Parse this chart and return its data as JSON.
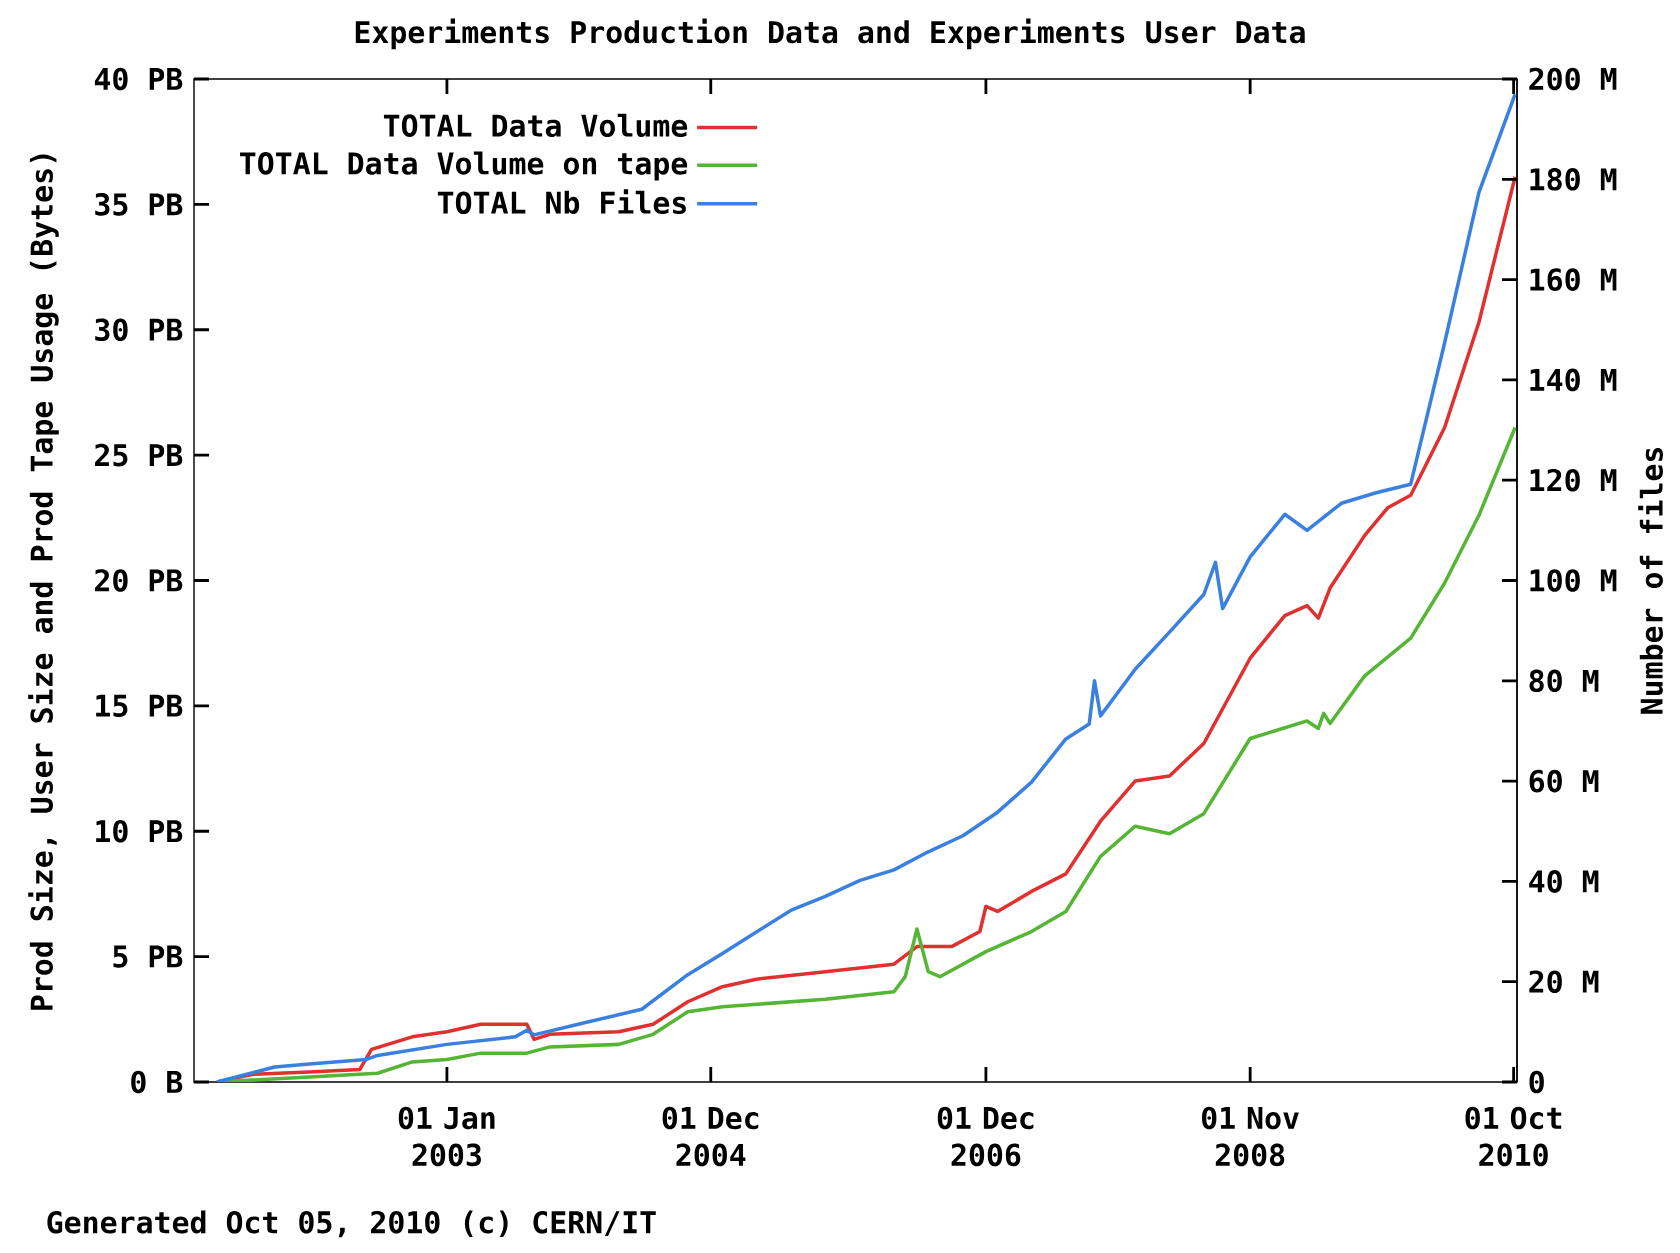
{
  "chart_data": {
    "type": "line",
    "title": "Experiments Production Data and Experiments User Data",
    "ylabel": "Prod Size, User Size and Prod Tape Usage (Bytes)",
    "y2label": "Number of files",
    "annotations": [
      "Generated Oct 05, 2010 (c) CERN/IT"
    ],
    "xlim": [
      "2001-03-01",
      "2010-10-10"
    ],
    "xticks": [
      {
        "value": "2003-01-01",
        "label": "01 Jan 2003"
      },
      {
        "value": "2004-12-01",
        "label": "01 Dec 2004"
      },
      {
        "value": "2006-12-01",
        "label": "01 Dec 2006"
      },
      {
        "value": "2008-11-01",
        "label": "01 Nov 2008"
      },
      {
        "value": "2010-10-01",
        "label": "01 Oct 2010"
      }
    ],
    "ylim": [
      0,
      40
    ],
    "yticks": [
      {
        "value": 0,
        "label": "0 B"
      },
      {
        "value": 5,
        "label": "5 PB"
      },
      {
        "value": 10,
        "label": "10 PB"
      },
      {
        "value": 15,
        "label": "15 PB"
      },
      {
        "value": 20,
        "label": "20 PB"
      },
      {
        "value": 25,
        "label": "25 PB"
      },
      {
        "value": 30,
        "label": "30 PB"
      },
      {
        "value": 35,
        "label": "35 PB"
      },
      {
        "value": 40,
        "label": "40 PB"
      }
    ],
    "y2lim": [
      0,
      200
    ],
    "y2ticks": [
      0,
      {
        "value": 20,
        "label": "20 M"
      },
      {
        "value": 40,
        "label": "40 M"
      },
      {
        "value": 60,
        "label": "60 M"
      },
      {
        "value": 80,
        "label": "80 M"
      },
      {
        "value": 100,
        "label": "100 M"
      },
      {
        "value": 120,
        "label": "120 M"
      },
      {
        "value": 140,
        "label": "140 M"
      },
      {
        "value": 160,
        "label": "160 M"
      },
      {
        "value": 180,
        "label": "180 M"
      },
      {
        "value": 200,
        "label": "200 M"
      }
    ],
    "legend": "top left",
    "grid": false,
    "line_style": "solid",
    "series": [
      {
        "name": "TOTAL Data Volume",
        "color": "#e03030",
        "x": [
          "2001-05-01",
          "2001-08-01",
          "2002-01-01",
          "2002-05-15",
          "2002-06-15",
          "2002-10-01",
          "2003-01-01",
          "2003-04-01",
          "2003-08-01",
          "2003-08-20",
          "2003-10-01",
          "2004-04-01",
          "2004-07-01",
          "2004-10-01",
          "2005-01-01",
          "2005-04-01",
          "2005-10-01",
          "2006-04-01",
          "2006-06-01",
          "2006-09-01",
          "2006-11-15",
          "2006-12-01",
          "2007-01-01",
          "2007-04-01",
          "2007-07-01",
          "2007-10-01",
          "2008-01-01",
          "2008-04-01",
          "2008-07-01",
          "2008-11-01",
          "2009-02-01",
          "2009-04-01",
          "2009-05-01",
          "2009-06-01",
          "2009-09-01",
          "2009-11-01",
          "2010-01-01",
          "2010-04-01",
          "2010-07-01",
          "2010-10-05"
        ],
        "values": [
          0,
          0.3,
          0.4,
          0.5,
          1.3,
          1.8,
          2.0,
          2.3,
          2.3,
          1.7,
          1.9,
          2.0,
          2.3,
          3.2,
          3.8,
          4.1,
          4.4,
          4.7,
          5.4,
          5.4,
          6.0,
          7.0,
          6.8,
          7.6,
          8.3,
          10.4,
          12.0,
          12.2,
          13.5,
          16.9,
          18.6,
          19.0,
          18.5,
          19.7,
          21.8,
          22.9,
          23.4,
          26.1,
          30.3,
          36.1
        ]
      },
      {
        "name": "TOTAL Data Volume on tape",
        "color": "#55b535",
        "x": [
          "2001-05-01",
          "2002-01-01",
          "2002-07-01",
          "2002-10-01",
          "2003-01-01",
          "2003-04-01",
          "2003-08-01",
          "2003-10-01",
          "2004-04-01",
          "2004-07-01",
          "2004-10-01",
          "2005-01-01",
          "2005-10-01",
          "2006-04-01",
          "2006-05-01",
          "2006-06-01",
          "2006-07-01",
          "2006-08-01",
          "2006-12-01",
          "2007-04-01",
          "2007-07-01",
          "2007-10-01",
          "2008-01-01",
          "2008-04-01",
          "2008-07-01",
          "2008-11-01",
          "2009-04-01",
          "2009-05-01",
          "2009-05-15",
          "2009-06-01",
          "2009-09-01",
          "2010-01-01",
          "2010-04-01",
          "2010-07-01",
          "2010-10-05"
        ],
        "values": [
          0,
          0.2,
          0.35,
          0.8,
          0.9,
          1.15,
          1.15,
          1.4,
          1.5,
          1.9,
          2.8,
          3.0,
          3.3,
          3.6,
          4.2,
          6.1,
          4.4,
          4.2,
          5.2,
          6.0,
          6.8,
          9.0,
          10.2,
          9.9,
          10.7,
          13.7,
          14.4,
          14.1,
          14.7,
          14.3,
          16.2,
          17.7,
          19.9,
          22.6,
          26.1
        ]
      },
      {
        "name": "TOTAL Nb Files",
        "color": "#3a80e0",
        "axis": "y2",
        "x": [
          "2001-05-01",
          "2001-10-01",
          "2002-01-01",
          "2002-06-01",
          "2002-07-01",
          "2003-01-01",
          "2003-07-01",
          "2003-08-01",
          "2003-08-20",
          "2004-01-01",
          "2004-06-01",
          "2004-10-01",
          "2005-01-01",
          "2005-04-01",
          "2005-07-01",
          "2005-10-01",
          "2006-01-01",
          "2006-04-01",
          "2006-07-01",
          "2006-10-01",
          "2007-01-01",
          "2007-04-01",
          "2007-07-01",
          "2007-09-01",
          "2007-09-15",
          "2007-10-01",
          "2008-01-01",
          "2008-04-01",
          "2008-07-01",
          "2008-08-01",
          "2008-08-20",
          "2008-11-01",
          "2009-02-01",
          "2009-04-01",
          "2009-07-01",
          "2009-10-01",
          "2010-01-01",
          "2010-04-01",
          "2010-07-01",
          "2010-10-05"
        ],
        "values": [
          0,
          3,
          3.6,
          4.5,
          5.3,
          7.5,
          9.0,
          10.3,
          9.4,
          11.8,
          14.5,
          21.4,
          25.6,
          29.9,
          34.2,
          37,
          40.2,
          42.3,
          45.9,
          49.1,
          53.8,
          59.8,
          68.4,
          71.4,
          80,
          73,
          82.3,
          89.7,
          97.2,
          103.6,
          94.4,
          104.7,
          113.2,
          110,
          115.4,
          117.5,
          119.2,
          147.4,
          177.4,
          197
        ]
      }
    ]
  }
}
